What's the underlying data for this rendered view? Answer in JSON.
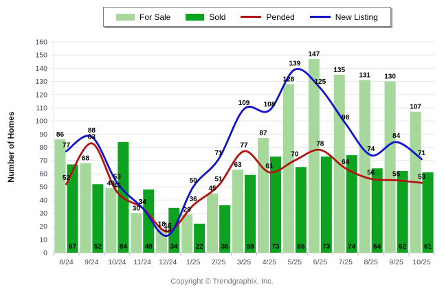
{
  "chart_data": {
    "type": "bar+line combo",
    "title": "",
    "xlabel": "",
    "ylabel": "Number of Homes",
    "ylim": [
      0,
      160
    ],
    "ytick_step": 10,
    "grid": true,
    "legend_position": "top-center",
    "categories": [
      "8/24",
      "9/24",
      "10/24",
      "11/24",
      "12/24",
      "1/25",
      "2/25",
      "3/25",
      "4/25",
      "5/25",
      "6/25",
      "7/25",
      "8/25",
      "9/25",
      "10/25"
    ],
    "series": [
      {
        "name": "For Sale",
        "type": "bar",
        "color": "#a6d79b",
        "values": [
          86,
          68,
          49,
          30,
          18,
          29,
          45,
          63,
          87,
          128,
          147,
          135,
          131,
          130,
          107
        ],
        "label_position": "above-bar"
      },
      {
        "name": "Sold",
        "type": "bar",
        "color": "#0da320",
        "values": [
          67,
          52,
          84,
          48,
          34,
          22,
          36,
          59,
          73,
          65,
          73,
          74,
          64,
          62,
          61
        ],
        "label_position": "inside-bar-bottom"
      },
      {
        "name": "Pended",
        "type": "line",
        "color": "#b31312",
        "values": [
          52,
          83,
          46,
          34,
          16,
          36,
          51,
          77,
          61,
          70,
          78,
          64,
          56,
          55,
          53
        ],
        "label_position": "above-point"
      },
      {
        "name": "New Listing",
        "type": "line",
        "color": "#1212cf",
        "values": [
          77,
          88,
          53,
          34,
          13,
          50,
          71,
          109,
          108,
          139,
          125,
          98,
          74,
          84,
          71
        ],
        "label_position": "above-point"
      }
    ]
  },
  "legend": {
    "items": [
      {
        "label": "For Sale"
      },
      {
        "label": "Sold"
      },
      {
        "label": "Pended"
      },
      {
        "label": "New Listing"
      }
    ]
  },
  "axis": {
    "ylabel": "Number of Homes",
    "tick_color": "#3f4a5a",
    "grid_color": "#e7e7e7",
    "axis_line_color": "#b9b9b9",
    "value_label_color": "#000000"
  },
  "footer": {
    "copyright": "Copyright © Trendgraphix, Inc."
  }
}
